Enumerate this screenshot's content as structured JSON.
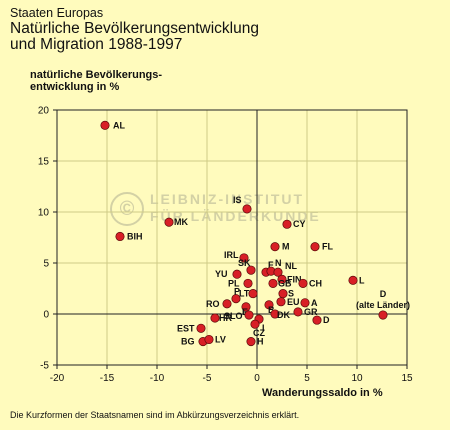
{
  "header": {
    "subtitle": "Staaten Europas",
    "title_line1": "Natürliche Bevölkerungsentwicklung",
    "title_line2": "und Migration 1988-1997"
  },
  "watermark": {
    "symbol": "©",
    "line1": "LEIBNIZ-INSTITUT",
    "line2": "FÜR LÄNDERKUNDE"
  },
  "footnote": "Die Kurzformen der Staatsnamen sind im Abkürzungsverzeichnis erklärt.",
  "chart_data": {
    "type": "scatter",
    "ylabel_line1": "natürliche Bevölkerungs-",
    "ylabel_line2": "entwicklung in %",
    "xlabel": "Wanderungssaldo in %",
    "xlim": [
      -20,
      15
    ],
    "ylim": [
      -5,
      20
    ],
    "xticks": [
      -20,
      -15,
      -10,
      -5,
      0,
      5,
      10,
      15
    ],
    "yticks": [
      -5,
      0,
      5,
      10,
      15,
      20
    ],
    "grid": true,
    "colors": {
      "point": "#d81f26",
      "grid": "#cfcb86",
      "axis": "#222222"
    },
    "points": [
      {
        "label": "AL",
        "x": -15.2,
        "y": 18.5
      },
      {
        "label": "IS",
        "x": -1.0,
        "y": 10.3
      },
      {
        "label": "MK",
        "x": -8.8,
        "y": 9.0
      },
      {
        "label": "CY",
        "x": 3.0,
        "y": 8.8
      },
      {
        "label": "BIH",
        "x": -13.7,
        "y": 7.6
      },
      {
        "label": "M",
        "x": 1.8,
        "y": 6.6
      },
      {
        "label": "FL",
        "x": 5.8,
        "y": 6.6
      },
      {
        "label": "IRL",
        "x": -1.3,
        "y": 5.5
      },
      {
        "label": "SK",
        "x": -0.6,
        "y": 4.3
      },
      {
        "label": "F",
        "x": 0.9,
        "y": 4.1
      },
      {
        "label": "N",
        "x": 1.4,
        "y": 4.2
      },
      {
        "label": "NL",
        "x": 2.1,
        "y": 4.1
      },
      {
        "label": "YU",
        "x": -2.0,
        "y": 3.9
      },
      {
        "label": "FIN",
        "x": 2.5,
        "y": 3.4
      },
      {
        "label": "L",
        "x": 9.6,
        "y": 3.3
      },
      {
        "label": "PL",
        "x": -0.9,
        "y": 3.0
      },
      {
        "label": "GB",
        "x": 1.6,
        "y": 3.0
      },
      {
        "label": "CH",
        "x": 4.6,
        "y": 3.0
      },
      {
        "label": "LT",
        "x": -0.4,
        "y": 2.0
      },
      {
        "label": "S",
        "x": 2.6,
        "y": 2.0
      },
      {
        "label": "P",
        "x": -2.1,
        "y": 1.5
      },
      {
        "label": "EU",
        "x": 2.4,
        "y": 1.2
      },
      {
        "label": "A",
        "x": 4.8,
        "y": 1.1
      },
      {
        "label": "RO",
        "x": -3.0,
        "y": 1.0
      },
      {
        "label": "B",
        "x": 1.2,
        "y": 0.9
      },
      {
        "label": "E",
        "x": -1.1,
        "y": 0.7
      },
      {
        "label": "GR",
        "x": 4.1,
        "y": 0.2
      },
      {
        "label": "D (alte Länder)",
        "x": 12.6,
        "y": -0.1
      },
      {
        "label": "SLO",
        "x": -0.8,
        "y": -0.1
      },
      {
        "label": "DK",
        "x": 1.8,
        "y": 0.0
      },
      {
        "label": "HR",
        "x": -4.2,
        "y": -0.4
      },
      {
        "label": "I",
        "x": 0.2,
        "y": -0.5
      },
      {
        "label": "D",
        "x": 6.0,
        "y": -0.6
      },
      {
        "label": "CZ",
        "x": -0.2,
        "y": -1.0
      },
      {
        "label": "EST",
        "x": -5.6,
        "y": -1.4
      },
      {
        "label": "BG",
        "x": -5.4,
        "y": -2.7
      },
      {
        "label": "LV",
        "x": -4.8,
        "y": -2.5
      },
      {
        "label": "H",
        "x": -0.6,
        "y": -2.7
      }
    ]
  }
}
